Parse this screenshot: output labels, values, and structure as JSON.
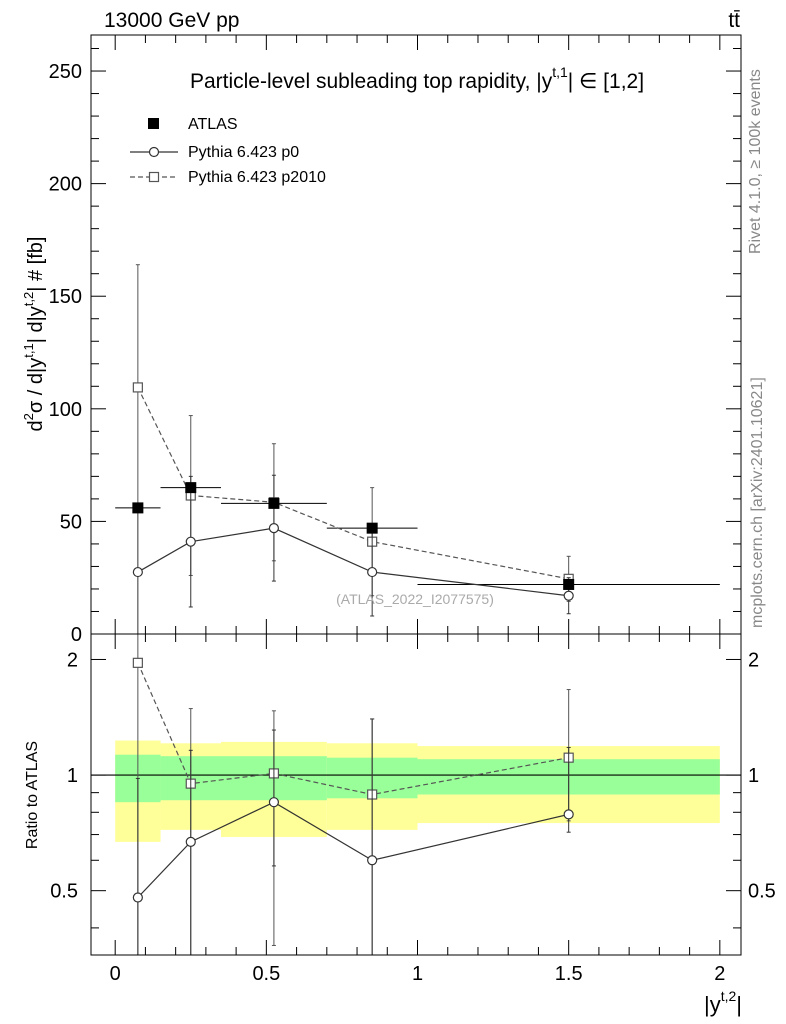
{
  "header": {
    "left": "13000 GeV pp",
    "right": "tt̄"
  },
  "side_labels": {
    "rivet": "Rivet 4.1.0, ≥ 100k events",
    "mcplots": "mcplots.cern.ch [arXiv:2401.10621]"
  },
  "watermark": "(ATLAS_2022_I2077575)",
  "chart_data": [
    {
      "type": "scatter",
      "panel": "main",
      "title": "Particle-level subleading top rapidity, |yt,1| ∈ [1,2]",
      "xlabel": "|yt,2|",
      "ylabel": "d²σ / d|yt,1| d|yt,2| # [fb]",
      "xlim": [
        -0.08,
        2.07
      ],
      "ylim": [
        0,
        266
      ],
      "xticks": [
        0,
        0.5,
        1,
        1.5,
        2
      ],
      "xticklabels": [
        "0",
        "0.5",
        "1",
        "1.5",
        "2"
      ],
      "yticks": [
        0,
        50,
        100,
        150,
        200,
        250
      ],
      "yticklabels": [
        "0",
        "50",
        "100",
        "150",
        "200",
        "250"
      ],
      "legend": {
        "placement": "top-left",
        "entries": [
          "ATLAS",
          "Pythia 6.423 p0",
          "Pythia 6.423 p2010"
        ]
      },
      "series": [
        {
          "name": "ATLAS",
          "style": "filled-square",
          "x": [
            0.075,
            0.25,
            0.525,
            0.85,
            1.5
          ],
          "xerr": [
            0.075,
            0.1,
            0.175,
            0.15,
            0.5
          ],
          "y": [
            56,
            65,
            58,
            47,
            22
          ]
        },
        {
          "name": "Pythia 6.423 p0",
          "style": "solid-circle",
          "x": [
            0.075,
            0.25,
            0.525,
            0.85,
            1.5
          ],
          "y": [
            27.5,
            41,
            47,
            27.5,
            17
          ],
          "yerr": [
            27.5,
            29,
            23.5,
            19.5,
            8
          ]
        },
        {
          "name": "Pythia 6.423 p2010",
          "style": "dashed-square",
          "x": [
            0.075,
            0.25,
            0.525,
            0.85,
            1.5
          ],
          "y": [
            109.5,
            61.5,
            58.5,
            41,
            24.5
          ],
          "yerr": [
            54.5,
            35.5,
            26,
            24,
            10
          ]
        }
      ]
    },
    {
      "type": "scatter",
      "panel": "ratio",
      "xlabel": "|yt,2|",
      "ylabel": "Ratio to ATLAS",
      "xlim": [
        -0.08,
        2.07
      ],
      "ylim": [
        0.34,
        2.33
      ],
      "xticks": [
        0,
        0.5,
        1,
        1.5,
        2
      ],
      "xticklabels": [
        "0",
        "0.5",
        "1",
        "1.5",
        "2"
      ],
      "yticks": [
        0.5,
        1,
        2
      ],
      "yticklabels": [
        "0.5",
        "1",
        "2"
      ],
      "reference_line": 1,
      "bands": [
        {
          "x_low": 0.0,
          "x_high": 0.15,
          "y1_low": 0.85,
          "y1_high": 1.13,
          "y2_low": 0.67,
          "y2_high": 1.23
        },
        {
          "x_low": 0.15,
          "x_high": 0.35,
          "y1_low": 0.86,
          "y1_high": 1.12,
          "y2_low": 0.72,
          "y2_high": 1.21
        },
        {
          "x_low": 0.35,
          "x_high": 0.7,
          "y1_low": 0.86,
          "y1_high": 1.12,
          "y2_low": 0.69,
          "y2_high": 1.22
        },
        {
          "x_low": 0.7,
          "x_high": 1.0,
          "y1_low": 0.87,
          "y1_high": 1.11,
          "y2_low": 0.72,
          "y2_high": 1.21
        },
        {
          "x_low": 1.0,
          "x_high": 2.0,
          "y1_low": 0.89,
          "y1_high": 1.1,
          "y2_low": 0.75,
          "y2_high": 1.19
        }
      ],
      "series": [
        {
          "name": "Pythia 6.423 p0",
          "style": "solid-circle",
          "x": [
            0.075,
            0.25,
            0.525,
            0.85,
            1.5
          ],
          "y": [
            0.48,
            0.67,
            0.85,
            0.6,
            0.79
          ],
          "ylow": [
            0.34,
            0.34,
            0.58,
            0.34,
            0.71
          ],
          "yhigh": [
            0.98,
            1.16,
            1.31,
            1.4,
            1.18
          ]
        },
        {
          "name": "Pythia 6.423 p2010",
          "style": "dashed-square",
          "x": [
            0.075,
            0.25,
            0.525,
            0.85,
            1.5
          ],
          "y": [
            1.96,
            0.95,
            1.01,
            0.89,
            1.11
          ],
          "ylow": [
            0.34,
            0.34,
            0.36,
            0.34,
            0.76
          ],
          "yhigh": [
            2.33,
            1.49,
            1.47,
            1.4,
            1.67
          ]
        }
      ]
    }
  ],
  "colors": {
    "band_inner": "#99ff99",
    "band_outer": "#ffff99",
    "mc_line": "#333333",
    "mc_p2010": "#555555",
    "data": "#000000",
    "side_text": "#888888"
  }
}
